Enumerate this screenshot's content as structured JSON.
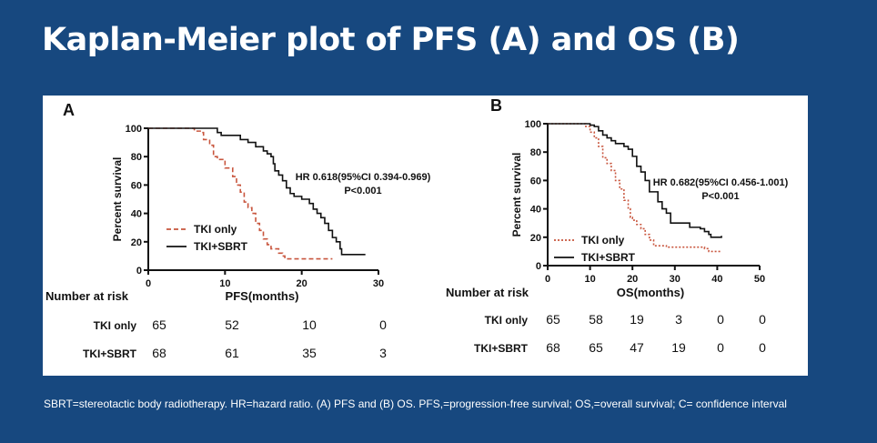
{
  "slide": {
    "title": "Kaplan-Meier plot of PFS (A) and OS (B)",
    "footnote": "SBRT=stereotactic body radiotherapy. HR=hazard ratio. (A) PFS and (B) OS. PFS,=progression-free survival; OS,=overall survival; C= confidence interval"
  },
  "colors": {
    "background": "#17487f",
    "tki_only": "#c8553d",
    "tki_sbrt": "#111111"
  },
  "chart_data": [
    {
      "type": "line",
      "panel_label": "A",
      "xlabel": "PFS(months)",
      "ylabel": "Percent survival",
      "xlim": [
        0,
        30
      ],
      "ylim": [
        0,
        100
      ],
      "xticks": [
        0,
        10,
        20,
        30
      ],
      "yticks": [
        0,
        20,
        40,
        60,
        80,
        100
      ],
      "legend": "bottom-left",
      "annotation": [
        "HR 0.618(95%CI 0.394-0.969)",
        "P<0.001"
      ],
      "series": [
        {
          "name": "TKI only",
          "style": "dashed",
          "points": [
            [
              0,
              100
            ],
            [
              5,
              100
            ],
            [
              6,
              98
            ],
            [
              7,
              97
            ],
            [
              7.2,
              92
            ],
            [
              8,
              88
            ],
            [
              8.5,
              80
            ],
            [
              9,
              78
            ],
            [
              10,
              72
            ],
            [
              11,
              66
            ],
            [
              11.5,
              60
            ],
            [
              12,
              55
            ],
            [
              12.5,
              48
            ],
            [
              13,
              44
            ],
            [
              13.5,
              40
            ],
            [
              14,
              33
            ],
            [
              14.5,
              28
            ],
            [
              15,
              22
            ],
            [
              15.5,
              18
            ],
            [
              16,
              15
            ],
            [
              17,
              12
            ],
            [
              17.5,
              10
            ],
            [
              17.8,
              8
            ],
            [
              24,
              8
            ]
          ]
        },
        {
          "name": "TKI+SBRT",
          "style": "solid",
          "points": [
            [
              0,
              100
            ],
            [
              8.5,
              100
            ],
            [
              9,
              97
            ],
            [
              9.5,
              95
            ],
            [
              11,
              95
            ],
            [
              12,
              92
            ],
            [
              13,
              90
            ],
            [
              14,
              87
            ],
            [
              15,
              84
            ],
            [
              15.5,
              82
            ],
            [
              16,
              80
            ],
            [
              16.3,
              75
            ],
            [
              16.5,
              70
            ],
            [
              17,
              67
            ],
            [
              17.5,
              63
            ],
            [
              18,
              58
            ],
            [
              18.5,
              54
            ],
            [
              19,
              52
            ],
            [
              20,
              50
            ],
            [
              21,
              47
            ],
            [
              21.5,
              43
            ],
            [
              22,
              40
            ],
            [
              22.5,
              37
            ],
            [
              23,
              33
            ],
            [
              23.5,
              28
            ],
            [
              24,
              23
            ],
            [
              24.5,
              20
            ],
            [
              25,
              15
            ],
            [
              25.2,
              11
            ],
            [
              28.3,
              11
            ]
          ]
        }
      ],
      "risk_table": {
        "title": "Number at risk",
        "rows": [
          {
            "label": "TKI only",
            "values": [
              "65",
              "52",
              "10",
              "0"
            ]
          },
          {
            "label": "TKI+SBRT",
            "values": [
              "68",
              "61",
              "35",
              "3"
            ]
          }
        ]
      }
    },
    {
      "type": "line",
      "panel_label": "B",
      "xlabel": "OS(months)",
      "ylabel": "Percent survival",
      "xlim": [
        0,
        50
      ],
      "ylim": [
        0,
        100
      ],
      "xticks": [
        0,
        10,
        20,
        30,
        40,
        50
      ],
      "yticks": [
        0,
        20,
        40,
        60,
        80,
        100
      ],
      "legend": "bottom-left",
      "annotation": [
        "HR 0.682(95%CI 0.456-1.001)",
        "P<0.001"
      ],
      "series": [
        {
          "name": "TKI only",
          "style": "dotted",
          "points": [
            [
              0,
              100
            ],
            [
              8,
              100
            ],
            [
              9,
              98
            ],
            [
              10,
              94
            ],
            [
              11,
              90
            ],
            [
              12,
              84
            ],
            [
              13,
              76
            ],
            [
              14,
              72
            ],
            [
              15,
              67
            ],
            [
              16,
              60
            ],
            [
              17,
              54
            ],
            [
              18,
              46
            ],
            [
              19,
              40
            ],
            [
              19.5,
              34
            ],
            [
              20,
              32
            ],
            [
              21,
              29
            ],
            [
              22,
              26
            ],
            [
              23,
              22
            ],
            [
              24,
              18
            ],
            [
              25,
              14
            ],
            [
              28,
              13
            ],
            [
              37,
              12
            ],
            [
              38,
              10
            ],
            [
              41,
              10
            ]
          ]
        },
        {
          "name": "TKI+SBRT",
          "style": "solid",
          "points": [
            [
              0,
              100
            ],
            [
              9,
              100
            ],
            [
              10,
              99
            ],
            [
              11,
              98
            ],
            [
              12,
              95
            ],
            [
              13,
              92
            ],
            [
              14,
              90
            ],
            [
              15,
              88
            ],
            [
              16,
              86
            ],
            [
              18,
              84
            ],
            [
              19,
              82
            ],
            [
              20,
              77
            ],
            [
              21,
              70
            ],
            [
              22,
              66
            ],
            [
              23,
              60
            ],
            [
              24,
              52
            ],
            [
              25,
              52
            ],
            [
              26,
              45
            ],
            [
              27,
              40
            ],
            [
              28,
              37
            ],
            [
              29,
              30
            ],
            [
              33,
              30
            ],
            [
              33.5,
              27
            ],
            [
              36,
              26
            ],
            [
              37,
              24
            ],
            [
              38,
              22
            ],
            [
              38.5,
              20
            ],
            [
              41,
              21
            ]
          ]
        }
      ],
      "risk_table": {
        "title": "Number at risk",
        "rows": [
          {
            "label": "TKI only",
            "values": [
              "65",
              "58",
              "19",
              "3",
              "0",
              "0"
            ]
          },
          {
            "label": "TKI+SBRT",
            "values": [
              "68",
              "65",
              "47",
              "19",
              "0",
              "0"
            ]
          }
        ]
      }
    }
  ]
}
